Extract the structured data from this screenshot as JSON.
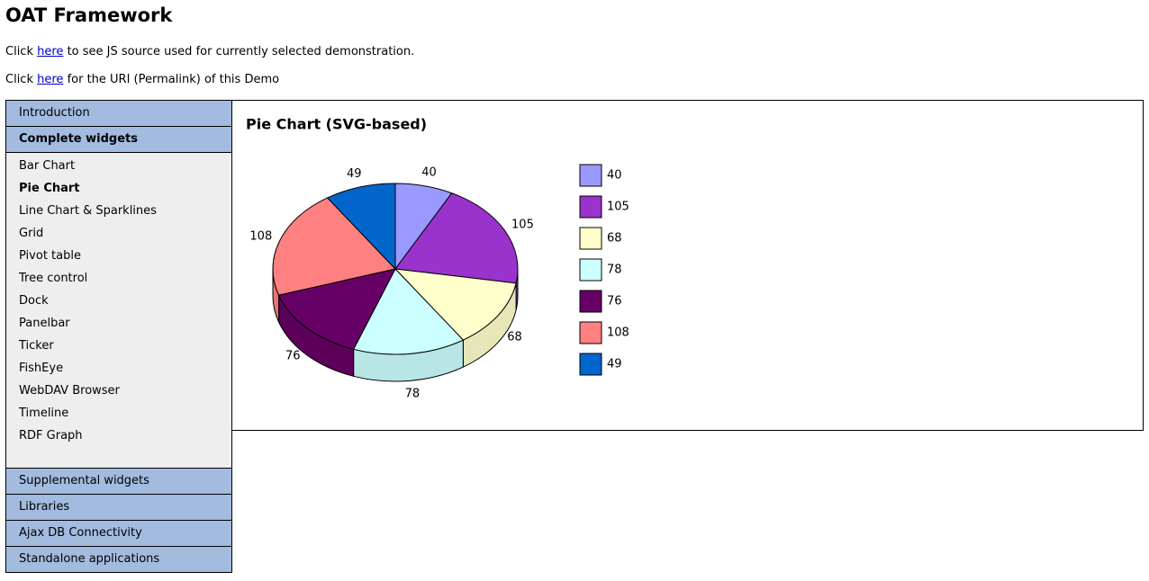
{
  "header": {
    "title": "OAT Framework"
  },
  "lines": [
    {
      "before": "Click",
      "link": "here",
      "after": "to see JS source used for currently selected demonstration."
    },
    {
      "before": "Click",
      "link": "here",
      "after": "for the URI (Permalink) of this Demo"
    }
  ],
  "nav": {
    "sections": [
      "Introduction",
      "Complete widgets",
      "Supplemental widgets",
      "Libraries",
      "Ajax DB Connectivity",
      "Standalone applications"
    ],
    "items": [
      "Bar Chart",
      "Pie Chart",
      "Line Chart & Sparklines",
      "Grid",
      "Pivot table",
      "Tree control",
      "Dock",
      "Panelbar",
      "Ticker",
      "FishEye",
      "WebDAV Browser",
      "Timeline",
      "RDF Graph"
    ]
  },
  "chart_data": {
    "type": "pie",
    "title": "Pie Chart (SVG-based)",
    "values": [
      40,
      105,
      68,
      78,
      76,
      108,
      49
    ],
    "colors": [
      "#9999ff",
      "#9933cc",
      "#ffffcc",
      "#ccffff",
      "#660066",
      "#ff8080",
      "#0066cc"
    ]
  }
}
